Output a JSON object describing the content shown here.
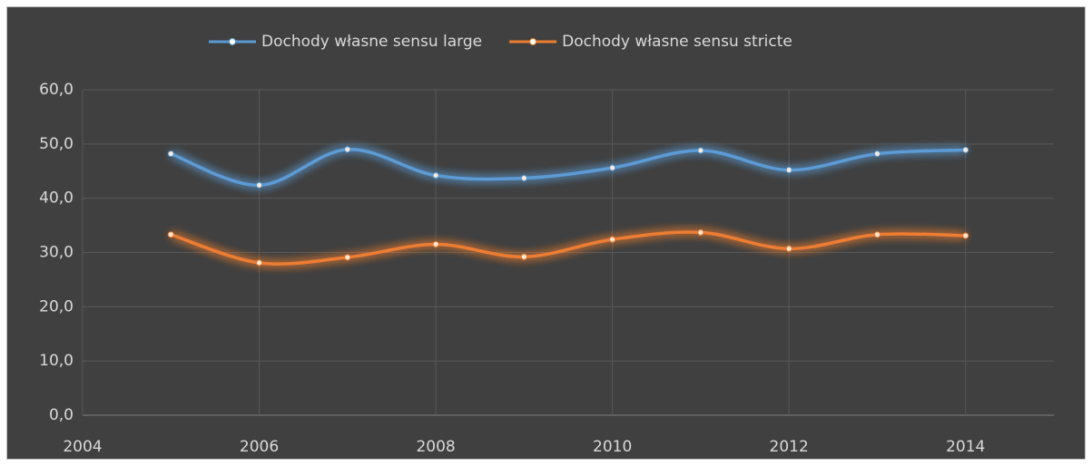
{
  "chart_data": {
    "type": "line",
    "x": [
      2005,
      2006,
      2007,
      2008,
      2009,
      2010,
      2011,
      2012,
      2013,
      2014
    ],
    "series": [
      {
        "name": "Dochody własne sensu large",
        "color": "#5b9bd5",
        "values": [
          48.2,
          42.4,
          49.0,
          44.2,
          43.7,
          45.6,
          48.8,
          45.2,
          48.2,
          48.9
        ]
      },
      {
        "name": "Dochody własne sensu stricte",
        "color": "#ed7d31",
        "values": [
          33.3,
          28.1,
          29.1,
          31.5,
          29.2,
          32.4,
          33.7,
          30.7,
          33.3,
          33.1
        ]
      }
    ],
    "xlim": [
      2004,
      2015
    ],
    "xticks": [
      2004,
      2006,
      2008,
      2010,
      2012,
      2014
    ],
    "ylim": [
      0,
      60
    ],
    "yticks": [
      {
        "value": 0,
        "label": "0,0"
      },
      {
        "value": 10,
        "label": "10,0"
      },
      {
        "value": 20,
        "label": "20,0"
      },
      {
        "value": 30,
        "label": "30,0"
      },
      {
        "value": 40,
        "label": "40,0"
      },
      {
        "value": 50,
        "label": "50,0"
      },
      {
        "value": 60,
        "label": "60,0"
      }
    ],
    "grid": true,
    "smooth": true,
    "legend": "top"
  }
}
